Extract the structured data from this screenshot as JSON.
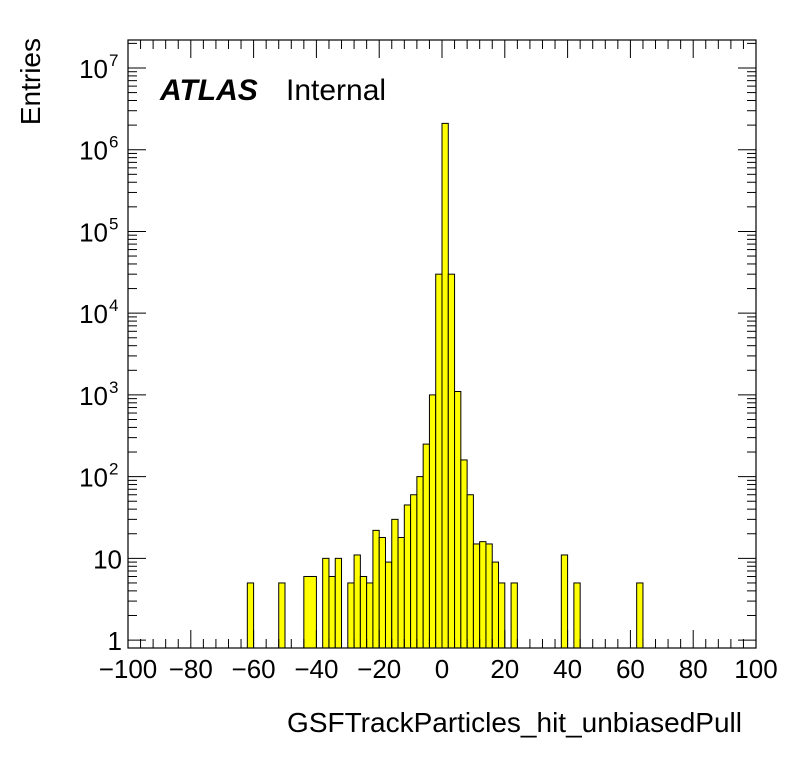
{
  "chart_data": {
    "type": "bar",
    "style": "step-histogram",
    "fill_color": "#ffff00",
    "line_color": "#000000",
    "bin_width": 2,
    "x_range": [
      -100,
      100
    ],
    "y_range": [
      0.8,
      22000000
    ],
    "y_scale": "log",
    "xlabel": "GSFTrackParticles_hit_unbiasedPull",
    "ylabel": "Entries",
    "x_ticks": [
      -100,
      -80,
      -60,
      -40,
      -20,
      0,
      20,
      40,
      60,
      80,
      100
    ],
    "x_tick_labels": [
      "−100",
      "−80",
      "−60",
      "−40",
      "−20",
      "0",
      "20",
      "40",
      "60",
      "80",
      "100"
    ],
    "y_ticks": [
      {
        "value": 1,
        "base": "1",
        "exp": ""
      },
      {
        "value": 10,
        "base": "10",
        "exp": ""
      },
      {
        "value": 100,
        "base": "10",
        "exp": "2"
      },
      {
        "value": 1000,
        "base": "10",
        "exp": "3"
      },
      {
        "value": 10000,
        "base": "10",
        "exp": "4"
      },
      {
        "value": 100000,
        "base": "10",
        "exp": "5"
      },
      {
        "value": 1000000,
        "base": "10",
        "exp": "6"
      },
      {
        "value": 10000000,
        "base": "10",
        "exp": "7"
      }
    ],
    "grid": false,
    "bins": [
      {
        "low": -62,
        "high": -60,
        "value": 5
      },
      {
        "low": -52,
        "high": -50,
        "value": 5
      },
      {
        "low": -44,
        "high": -40,
        "value": 6
      },
      {
        "low": -38,
        "high": -36,
        "value": 10
      },
      {
        "low": -36,
        "high": -34,
        "value": 6
      },
      {
        "low": -34,
        "high": -32,
        "value": 10
      },
      {
        "low": -30,
        "high": -28,
        "value": 5
      },
      {
        "low": -28,
        "high": -26,
        "value": 11
      },
      {
        "low": -26,
        "high": -24,
        "value": 6
      },
      {
        "low": -24,
        "high": -22,
        "value": 5
      },
      {
        "low": -22,
        "high": -20,
        "value": 22
      },
      {
        "low": -20,
        "high": -18,
        "value": 18
      },
      {
        "low": -18,
        "high": -16,
        "value": 9
      },
      {
        "low": -16,
        "high": -14,
        "value": 30
      },
      {
        "low": -14,
        "high": -12,
        "value": 18
      },
      {
        "low": -12,
        "high": -10,
        "value": 45
      },
      {
        "low": -10,
        "high": -8,
        "value": 60
      },
      {
        "low": -8,
        "high": -6,
        "value": 100
      },
      {
        "low": -6,
        "high": -4,
        "value": 250
      },
      {
        "low": -4,
        "high": -2,
        "value": 1000
      },
      {
        "low": -2,
        "high": 0,
        "value": 30000
      },
      {
        "low": 0,
        "high": 2,
        "value": 2100000
      },
      {
        "low": 2,
        "high": 4,
        "value": 30000
      },
      {
        "low": 4,
        "high": 6,
        "value": 1100
      },
      {
        "low": 6,
        "high": 8,
        "value": 160
      },
      {
        "low": 8,
        "high": 10,
        "value": 60
      },
      {
        "low": 10,
        "high": 12,
        "value": 15
      },
      {
        "low": 12,
        "high": 14,
        "value": 16
      },
      {
        "low": 14,
        "high": 16,
        "value": 15
      },
      {
        "low": 16,
        "high": 18,
        "value": 9
      },
      {
        "low": 18,
        "high": 20,
        "value": 5
      },
      {
        "low": 22,
        "high": 24,
        "value": 5
      },
      {
        "low": 38,
        "high": 40,
        "value": 11
      },
      {
        "low": 42,
        "high": 44,
        "value": 5
      },
      {
        "low": 62,
        "high": 64,
        "value": 5
      }
    ],
    "annotations": {
      "experiment": "ATLAS",
      "status": "Internal"
    }
  }
}
